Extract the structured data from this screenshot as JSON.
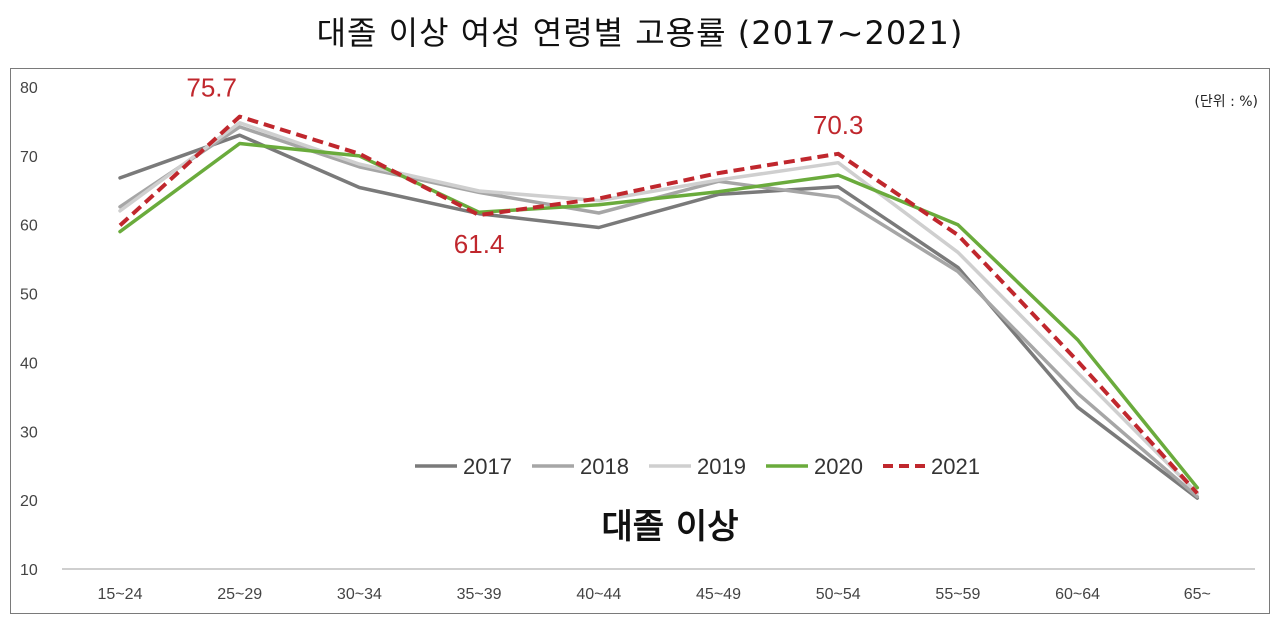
{
  "title": "대졸 이상 여성 연령별 고용률 (2017~2021)",
  "chart_data": {
    "type": "line",
    "categories": [
      "15~24",
      "25~29",
      "30~34",
      "35~39",
      "40~44",
      "45~49",
      "50~54",
      "55~59",
      "60~64",
      "65~"
    ],
    "ylim": [
      10,
      80
    ],
    "yticks": [
      10,
      20,
      30,
      40,
      50,
      60,
      70,
      80
    ],
    "unit_label": "(단위 : %)",
    "subtitle": "대졸 이상",
    "grid": false,
    "legend_position": "bottom-center",
    "series": [
      {
        "name": "2017",
        "color": "#7a7a7a",
        "dash": "solid",
        "values": [
          66.8,
          73.0,
          65.4,
          61.6,
          59.6,
          64.4,
          65.5,
          53.8,
          33.5,
          20.3
        ]
      },
      {
        "name": "2018",
        "color": "#a6a6a6",
        "dash": "solid",
        "values": [
          62.6,
          74.2,
          68.4,
          64.7,
          61.7,
          66.3,
          64.0,
          53.2,
          35.5,
          20.5
        ]
      },
      {
        "name": "2019",
        "color": "#cfcfcf",
        "dash": "solid",
        "values": [
          62.0,
          74.8,
          68.8,
          64.9,
          63.5,
          66.5,
          69.0,
          56.0,
          38.5,
          21.0
        ]
      },
      {
        "name": "2020",
        "color": "#6aab3c",
        "dash": "solid",
        "values": [
          59.0,
          71.8,
          70.0,
          61.8,
          62.9,
          64.8,
          67.2,
          60.0,
          43.3,
          21.8
        ]
      },
      {
        "name": "2021",
        "color": "#c0272d",
        "dash": "dashed",
        "values": [
          59.9,
          75.7,
          70.3,
          61.4,
          63.8,
          67.5,
          70.3,
          58.5,
          40.2,
          21.0
        ]
      }
    ],
    "annotations": [
      {
        "series": "2021",
        "category": "25~29",
        "text": "75.7"
      },
      {
        "series": "2021",
        "category": "35~39",
        "text": "61.4"
      },
      {
        "series": "2021",
        "category": "50~54",
        "text": "70.3"
      }
    ]
  }
}
